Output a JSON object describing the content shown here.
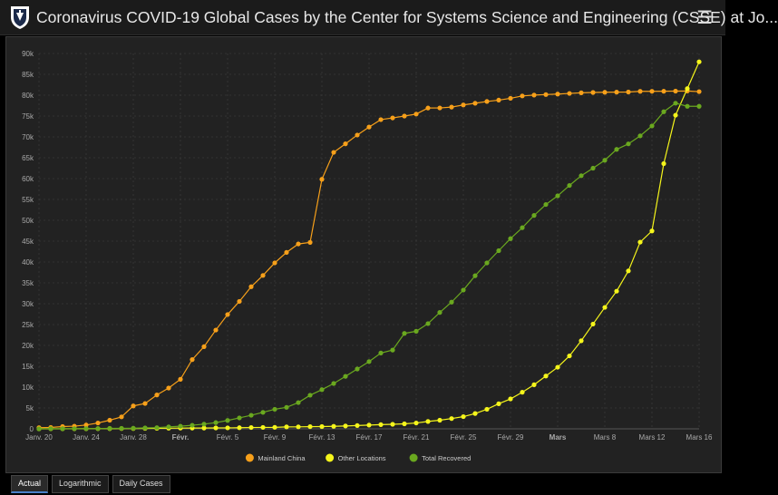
{
  "header": {
    "title": "Coronavirus COVID-19 Global Cases by the Center for Systems Science and Engineering (CSSE) at Jo...",
    "menu_icon": "hamburger-menu-icon",
    "logo_icon": "university-shield-icon"
  },
  "tabs": [
    {
      "label": "Actual",
      "active": true
    },
    {
      "label": "Logarithmic",
      "active": false
    },
    {
      "label": "Daily Cases",
      "active": false
    }
  ],
  "chart_data": {
    "type": "line",
    "ylim": [
      0,
      90000
    ],
    "y_ticks": [
      "0",
      "5k",
      "10k",
      "15k",
      "20k",
      "25k",
      "30k",
      "35k",
      "40k",
      "45k",
      "50k",
      "55k",
      "60k",
      "65k",
      "70k",
      "75k",
      "80k",
      "85k",
      "90k"
    ],
    "x_tick_labels": [
      {
        "day": 0,
        "label": "Janv. 20",
        "bold": false
      },
      {
        "day": 4,
        "label": "Janv. 24",
        "bold": false
      },
      {
        "day": 8,
        "label": "Janv. 28",
        "bold": false
      },
      {
        "day": 12,
        "label": "Févr.",
        "bold": true
      },
      {
        "day": 16,
        "label": "Févr. 5",
        "bold": false
      },
      {
        "day": 20,
        "label": "Févr. 9",
        "bold": false
      },
      {
        "day": 24,
        "label": "Févr. 13",
        "bold": false
      },
      {
        "day": 28,
        "label": "Févr. 17",
        "bold": false
      },
      {
        "day": 32,
        "label": "Févr. 21",
        "bold": false
      },
      {
        "day": 36,
        "label": "Févr. 25",
        "bold": false
      },
      {
        "day": 40,
        "label": "Févr. 29",
        "bold": false
      },
      {
        "day": 44,
        "label": "Mars",
        "bold": true
      },
      {
        "day": 48,
        "label": "Mars 8",
        "bold": false
      },
      {
        "day": 52,
        "label": "Mars 12",
        "bold": false
      },
      {
        "day": 56,
        "label": "Mars 16",
        "bold": false
      }
    ],
    "x_domain_days": [
      0,
      56
    ],
    "x_start_day": 0,
    "grid": true,
    "legend_position": "bottom-center",
    "series": [
      {
        "name": "Mainland China",
        "color": "#f7a01a",
        "values": [
          278,
          326,
          547,
          639,
          916,
          1399,
          2062,
          2863,
          5494,
          6070,
          8124,
          9783,
          11871,
          16607,
          19693,
          23680,
          27409,
          30553,
          34075,
          36778,
          39790,
          42306,
          44327,
          44699,
          59832,
          66292,
          68347,
          70446,
          72364,
          74139,
          74546,
          74999,
          75472,
          76922,
          76938,
          77152,
          77660,
          78065,
          78498,
          78824,
          79251,
          79826,
          80026,
          80151,
          80271,
          80422,
          80573,
          80652,
          80699,
          80735,
          80757,
          80921,
          80932,
          80945,
          80977,
          81003,
          80860
        ]
      },
      {
        "name": "Other Locations",
        "color": "#f5f51b",
        "values": [
          4,
          6,
          8,
          14,
          25,
          40,
          57,
          64,
          87,
          105,
          118,
          153,
          173,
          183,
          188,
          212,
          227,
          265,
          317,
          343,
          361,
          457,
          476,
          523,
          538,
          595,
          685,
          780,
          896,
          999,
          1089,
          1200,
          1402,
          1769,
          2069,
          2459,
          2918,
          3664,
          4691,
          6009,
          7169,
          8774,
          10566,
          12668,
          14768,
          17481,
          21113,
          25127,
          29118,
          33002,
          37871,
          44767,
          47446,
          63592,
          75199,
          81581,
          88000
        ]
      },
      {
        "name": "Total Recovered",
        "color": "#6aa81f",
        "values": [
          0,
          30,
          32,
          39,
          52,
          61,
          107,
          126,
          143,
          222,
          284,
          472,
          623,
          852,
          1124,
          1487,
          2011,
          2616,
          3244,
          3946,
          4683,
          5150,
          6295,
          8058,
          9395,
          10865,
          12583,
          14352,
          16121,
          18177,
          18890,
          22886,
          23394,
          25227,
          27905,
          30384,
          33277,
          36711,
          39782,
          42716,
          45602,
          48228,
          51170,
          53796,
          55865,
          58359,
          60694,
          62494,
          64404,
          67003,
          68324,
          70251,
          72624,
          76034,
          78088,
          77341,
          77338
        ]
      }
    ]
  }
}
